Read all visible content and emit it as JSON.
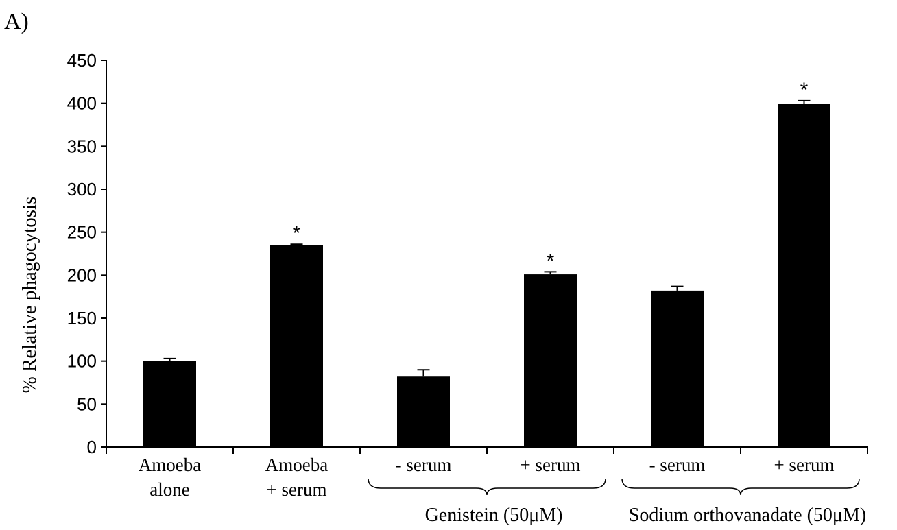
{
  "panel_label": "A)",
  "chart_data": {
    "type": "bar",
    "ylabel": "% Relative phagocytosis",
    "xlabel": "",
    "ylim": [
      0,
      450
    ],
    "yticks": [
      0,
      50,
      100,
      150,
      200,
      250,
      300,
      350,
      400,
      450
    ],
    "grid": false,
    "categories": [
      [
        "Amoeba",
        "alone"
      ],
      [
        "Amoeba",
        "+ serum"
      ],
      [
        "- serum"
      ],
      [
        "+ serum"
      ],
      [
        "- serum"
      ],
      [
        "+ serum"
      ]
    ],
    "values": [
      100,
      235,
      82,
      201,
      182,
      399
    ],
    "errors": [
      3,
      1,
      8,
      3,
      5,
      4
    ],
    "significance": [
      "",
      "*",
      "",
      "*",
      "",
      "*"
    ],
    "groups": [
      {
        "label": "Genistein (50μM)",
        "members": [
          2,
          3
        ]
      },
      {
        "label": "Sodium orthovanadate (50μM)",
        "members": [
          4,
          5
        ]
      }
    ],
    "bar_color": "#000000"
  }
}
